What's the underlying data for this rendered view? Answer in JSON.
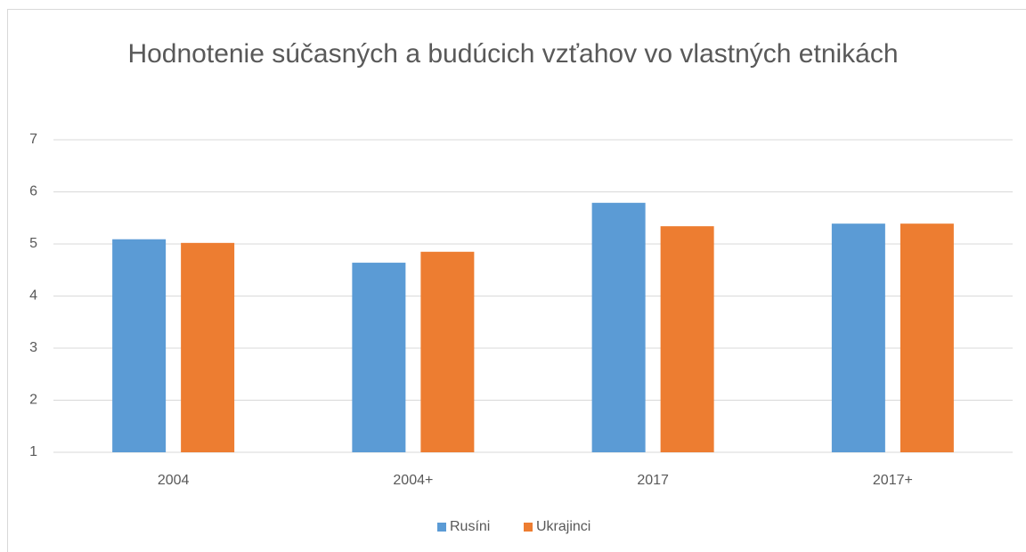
{
  "chart_data": {
    "type": "bar",
    "title": "Hodnotenie súčasných a budúcich vzťahov vo vlastných etnikách",
    "categories": [
      "2004",
      "2004+",
      "2017",
      "2017+"
    ],
    "series": [
      {
        "name": "Rusíni",
        "color": "#5b9bd5",
        "values": [
          5.09,
          4.64,
          5.79,
          5.39
        ]
      },
      {
        "name": "Ukrajinci",
        "color": "#ed7d31",
        "values": [
          5.02,
          4.85,
          5.34,
          5.39
        ]
      }
    ],
    "ylim": [
      1,
      7
    ],
    "yticks": [
      1,
      2,
      3,
      4,
      5,
      6,
      7
    ],
    "grid": true,
    "legend": "bottom"
  }
}
